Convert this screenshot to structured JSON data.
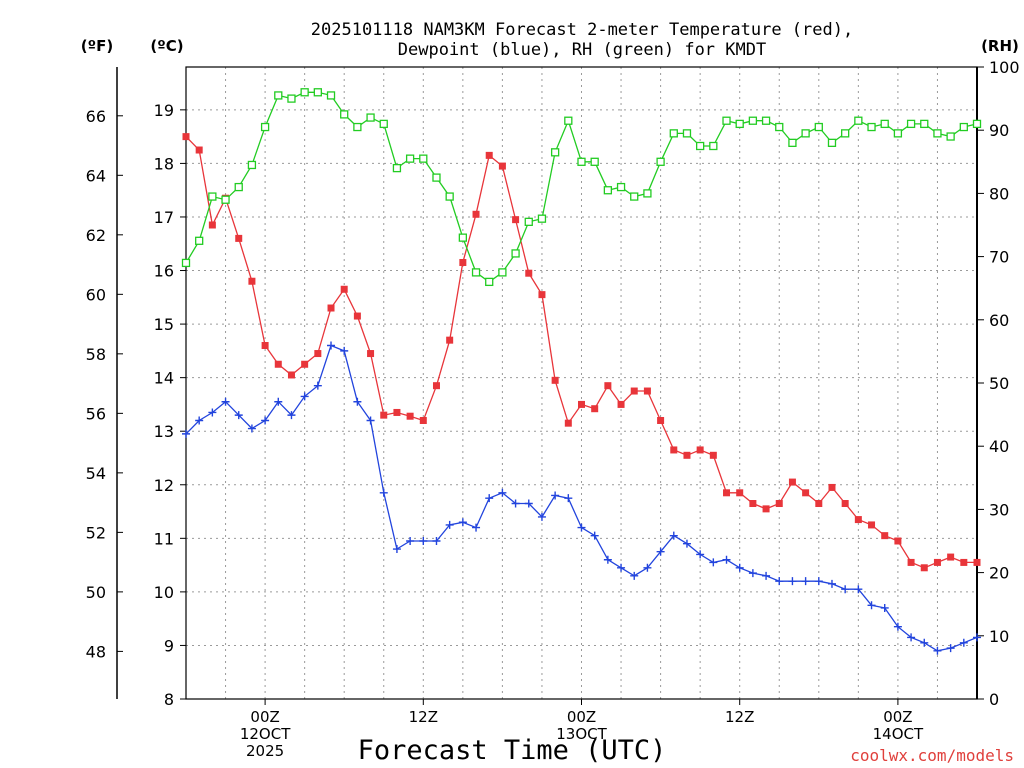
{
  "chart_data": {
    "type": "line",
    "title_line1": "2025101118 NAM3KM Forecast 2-meter Temperature (red),",
    "title_line2": "Dewpoint (blue), RH (green) for KMDT",
    "xlabel": "Forecast Time (UTC)",
    "credit": "coolwx.com/models",
    "unit_left_outer": "(ºF)",
    "unit_left_inner": "(ºC)",
    "unit_right": "(RH)",
    "x_range_hours": [
      0,
      60
    ],
    "c_range": [
      8,
      19.8
    ],
    "rh_range": [
      0,
      100
    ],
    "celsius_ticks": [
      "8",
      "9",
      "10",
      "11",
      "12",
      "13",
      "14",
      "15",
      "16",
      "17",
      "18",
      "19"
    ],
    "fahrenheit_ticks": [
      "48",
      "50",
      "52",
      "54",
      "56",
      "58",
      "60",
      "62",
      "64",
      "66"
    ],
    "rh_ticks": [
      "0",
      "10",
      "20",
      "30",
      "40",
      "50",
      "60",
      "70",
      "80",
      "90",
      "100"
    ],
    "x_ticks": [
      {
        "hour": 6,
        "lines": [
          "00Z",
          "12OCT",
          "2025"
        ]
      },
      {
        "hour": 18,
        "lines": [
          "12Z"
        ]
      },
      {
        "hour": 30,
        "lines": [
          "00Z",
          "13OCT"
        ]
      },
      {
        "hour": 42,
        "lines": [
          "12Z"
        ]
      },
      {
        "hour": 54,
        "lines": [
          "00Z",
          "14OCT"
        ]
      }
    ],
    "hours": [
      0,
      1,
      2,
      3,
      4,
      5,
      6,
      7,
      8,
      9,
      10,
      11,
      12,
      13,
      14,
      15,
      16,
      17,
      18,
      19,
      20,
      21,
      22,
      23,
      24,
      25,
      26,
      27,
      28,
      29,
      30,
      31,
      32,
      33,
      34,
      35,
      36,
      37,
      38,
      39,
      40,
      41,
      42,
      43,
      44,
      45,
      46,
      47,
      48,
      49,
      50,
      51,
      52,
      53,
      54,
      55,
      56,
      57,
      58,
      59,
      60
    ],
    "series": [
      {
        "name": "2-meter Temperature",
        "unit": "C",
        "color": "#e8353a",
        "marker": "filled-square",
        "values": [
          18.5,
          18.25,
          16.85,
          17.35,
          16.6,
          15.8,
          14.6,
          14.25,
          14.05,
          14.25,
          14.45,
          15.3,
          15.65,
          15.15,
          14.45,
          13.3,
          13.35,
          13.28,
          13.2,
          13.85,
          14.7,
          16.15,
          17.05,
          18.15,
          17.95,
          16.95,
          15.95,
          15.55,
          13.95,
          13.15,
          13.5,
          13.42,
          13.85,
          13.5,
          13.75,
          13.75,
          13.2,
          12.65,
          12.55,
          12.65,
          12.55,
          11.85,
          11.85,
          11.65,
          11.55,
          11.65,
          12.05,
          11.85,
          11.65,
          11.95,
          11.65,
          11.35,
          11.25,
          11.05,
          10.95,
          10.55,
          10.45,
          10.55,
          10.65,
          10.55,
          10.55
        ]
      },
      {
        "name": "Dewpoint",
        "unit": "C",
        "color": "#2244dd",
        "marker": "plus",
        "values": [
          12.95,
          13.2,
          13.35,
          13.55,
          13.3,
          13.05,
          13.2,
          13.55,
          13.3,
          13.65,
          13.85,
          14.6,
          14.5,
          13.55,
          13.2,
          11.85,
          10.8,
          10.95,
          10.95,
          10.95,
          11.25,
          11.3,
          11.2,
          11.75,
          11.85,
          11.65,
          11.65,
          11.4,
          11.8,
          11.75,
          11.2,
          11.05,
          10.6,
          10.45,
          10.3,
          10.45,
          10.75,
          11.05,
          10.9,
          10.7,
          10.55,
          10.6,
          10.45,
          10.35,
          10.3,
          10.2,
          10.2,
          10.2,
          10.2,
          10.15,
          10.05,
          10.05,
          9.75,
          9.7,
          9.35,
          9.15,
          9.05,
          8.9,
          8.95,
          9.05,
          9.15
        ]
      },
      {
        "name": "Relative Humidity",
        "unit": "%",
        "color": "#22cc22",
        "marker": "open-square",
        "values": [
          69,
          72.5,
          79.5,
          79,
          81,
          84.5,
          90.5,
          95.5,
          95,
          96,
          96,
          95.5,
          92.5,
          90.5,
          92,
          91,
          84,
          85.5,
          85.5,
          82.5,
          79.5,
          73,
          67.5,
          66,
          67.5,
          70.5,
          75.5,
          76,
          86.5,
          91.5,
          85,
          85,
          80.5,
          81,
          79.5,
          80,
          85,
          89.5,
          89.5,
          87.5,
          87.5,
          91.5,
          91,
          91.5,
          91.5,
          90.5,
          88,
          89.5,
          90.5,
          88,
          89.5,
          91.5,
          90.5,
          91,
          89.5,
          91,
          91,
          89.5,
          89,
          90.5,
          91
        ]
      }
    ]
  }
}
